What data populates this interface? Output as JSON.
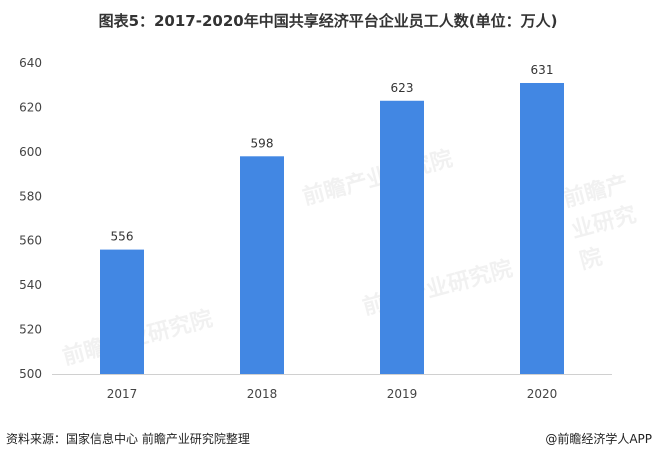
{
  "chart_data": {
    "type": "bar",
    "title": "图表5：2017-2020年中国共享经济平台企业员工人数(单位：万人)",
    "categories": [
      "2017",
      "2018",
      "2019",
      "2020"
    ],
    "values": [
      556,
      598,
      623,
      631
    ],
    "ylim": [
      500,
      640
    ],
    "yticks": [
      500,
      520,
      540,
      560,
      580,
      600,
      620,
      640
    ],
    "xlabel": "",
    "ylabel": "",
    "grid": false,
    "bar_color": "#4287E3",
    "data_labels": true
  },
  "footer": {
    "source": "资料来源：国家信息中心 前瞻产业研究院整理",
    "credit": "@前瞻经济学人APP"
  },
  "watermark": "前瞻产业研究院"
}
